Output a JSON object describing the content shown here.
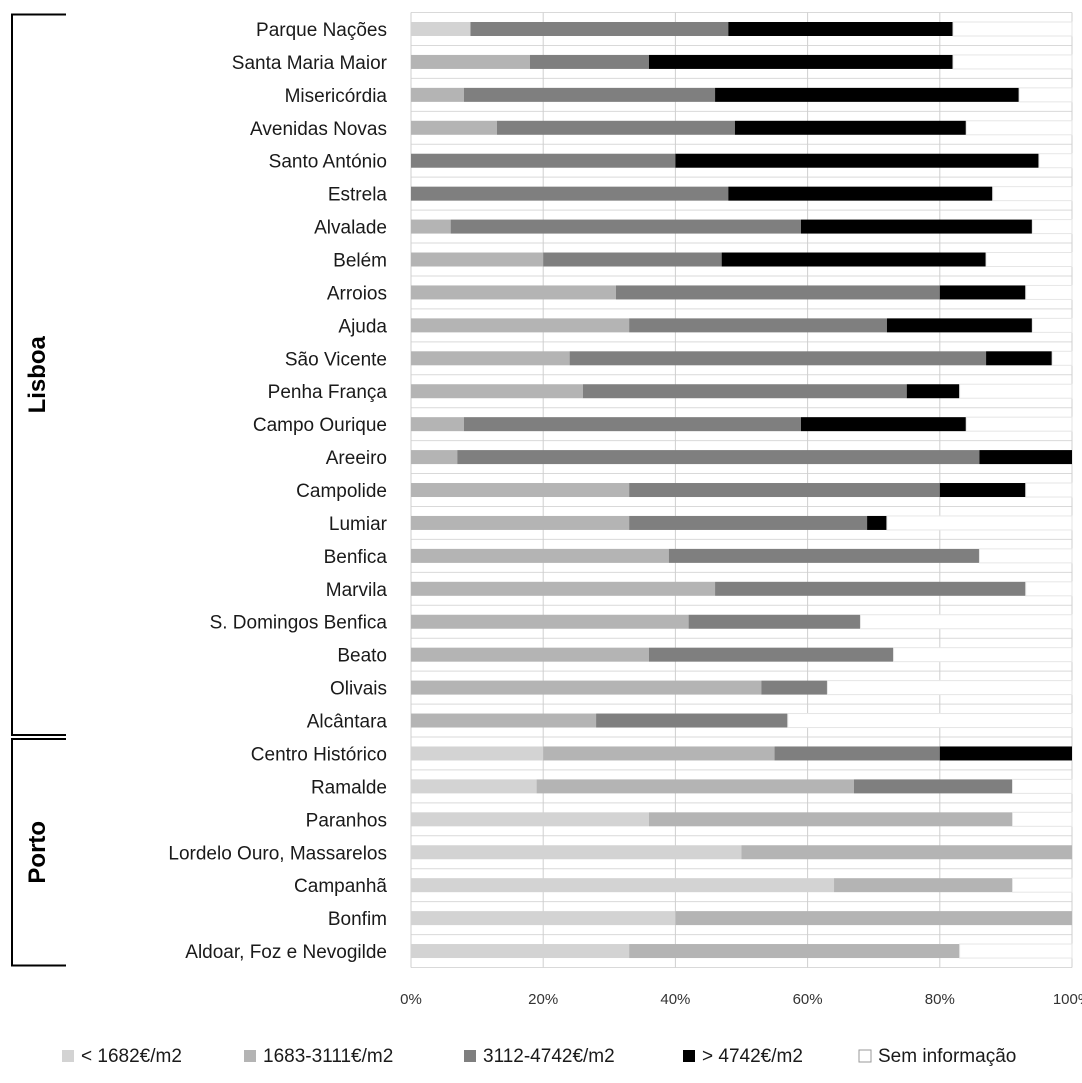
{
  "chart_data": {
    "type": "bar",
    "orientation": "horizontal",
    "stacked": "percent",
    "xlim": [
      0,
      100
    ],
    "grid": true,
    "legend_position": "bottom",
    "tick_labels": [
      "0%",
      "20%",
      "40%",
      "60%",
      "80%",
      "100%"
    ],
    "groups": [
      {
        "name": "Lisboa",
        "first": 0,
        "last": 21
      },
      {
        "name": "Porto",
        "first": 22,
        "last": 28
      }
    ],
    "categories": [
      "Parque Nações",
      "Santa Maria Maior",
      "Misericórdia",
      "Avenidas Novas",
      "Santo António",
      "Estrela",
      "Alvalade",
      "Belém",
      "Arroios",
      "Ajuda",
      "São Vicente",
      "Penha França",
      "Campo Ourique",
      "Areeiro",
      "Campolide",
      "Lumiar",
      "Benfica",
      "Marvila",
      "S. Domingos Benfica",
      "Beato",
      "Olivais",
      "Alcântara",
      "Centro Histórico",
      "Ramalde",
      "Paranhos",
      "Lordelo Ouro, Massarelos",
      "Campanhã",
      "Bonfim",
      "Aldoar, Foz e Nevogilde"
    ],
    "series": [
      {
        "name": "< 1682€/m2",
        "color": "#d3d3d3",
        "values": [
          9,
          0,
          0,
          0,
          0,
          0,
          0,
          0,
          0,
          0,
          0,
          0,
          0,
          0,
          0,
          0,
          0,
          0,
          0,
          0,
          0,
          0,
          20,
          19,
          36,
          50,
          64,
          40,
          33
        ]
      },
      {
        "name": "1683-3111€/m2",
        "color": "#b4b4b4",
        "values": [
          0,
          18,
          8,
          13,
          0,
          0,
          6,
          20,
          31,
          33,
          24,
          26,
          8,
          7,
          33,
          33,
          39,
          46,
          42,
          36,
          53,
          28,
          35,
          48,
          55,
          50,
          27,
          60,
          50
        ]
      },
      {
        "name": "3112-4742€/m2",
        "color": "#7f7f7f",
        "values": [
          39,
          18,
          38,
          36,
          40,
          48,
          53,
          27,
          49,
          39,
          63,
          49,
          51,
          79,
          47,
          36,
          47,
          47,
          26,
          37,
          10,
          29,
          25,
          24,
          0,
          0,
          0,
          0,
          0
        ]
      },
      {
        "name": "> 4742€/m2",
        "color": "#000000",
        "values": [
          34,
          46,
          46,
          35,
          55,
          40,
          35,
          40,
          13,
          22,
          10,
          8,
          25,
          14,
          13,
          3,
          0,
          0,
          0,
          0,
          0,
          0,
          20,
          0,
          0,
          0,
          0,
          0,
          0
        ]
      },
      {
        "name": "Sem informação",
        "color": "#ffffff",
        "values": [
          18,
          18,
          8,
          16,
          5,
          12,
          6,
          13,
          7,
          6,
          3,
          17,
          16,
          0,
          7,
          28,
          14,
          7,
          32,
          27,
          37,
          43,
          0,
          9,
          9,
          0,
          9,
          0,
          17
        ]
      }
    ]
  }
}
